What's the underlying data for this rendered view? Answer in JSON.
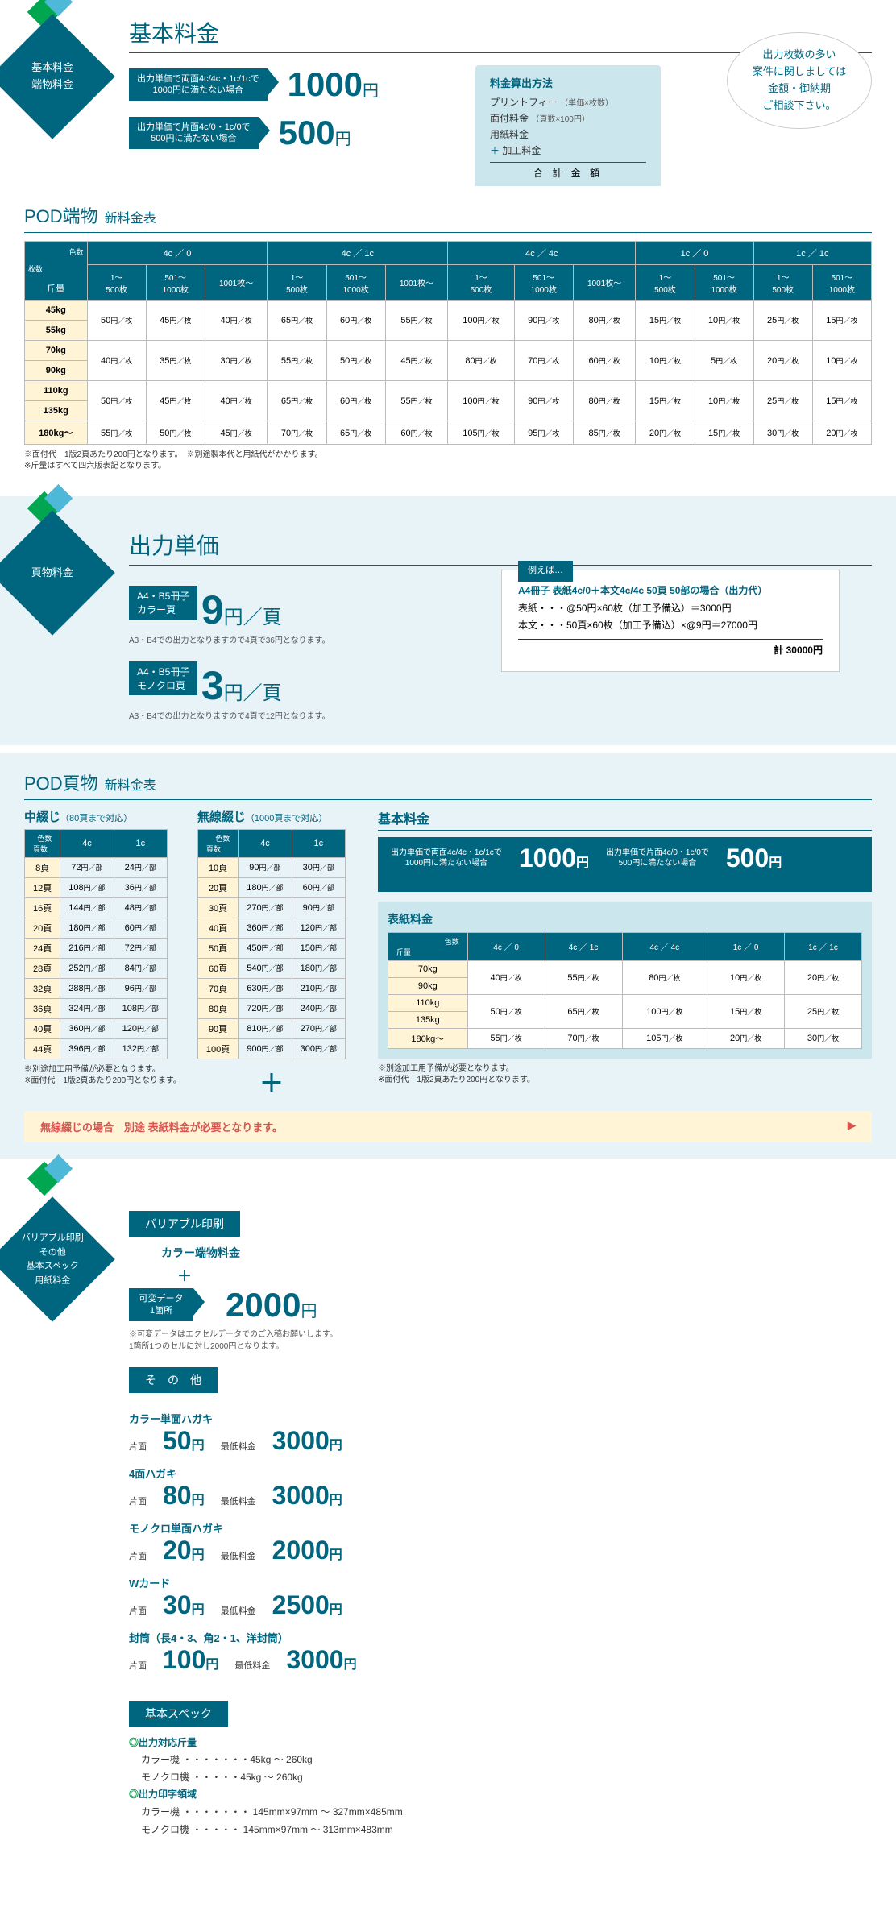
{
  "s1": {
    "badge": "基本料金\n端物料金",
    "title": "基本料金",
    "prices": [
      {
        "label": "出力単価で両面4c/4c・1c/1cで\n1000円に満たない場合",
        "value": "1000",
        "unit": "円"
      },
      {
        "label": "出力単価で片面4c/0・1c/0で\n500円に満たない場合",
        "value": "500",
        "unit": "円"
      }
    ],
    "calc": {
      "title": "料金算出方法",
      "lines": [
        "プリントフィー",
        "面付料金",
        "用紙料金",
        "加工料金"
      ],
      "line_notes": [
        "（単価×枚数）",
        "（頁数×100円）",
        "",
        ""
      ],
      "plus": "＋",
      "total": "合 計 金 額"
    },
    "speech": "出力枚数の多い\n案件に関しましては\n金額・御納期\nご相談下さい。"
  },
  "pod1": {
    "title": "POD端物",
    "title_sub": "新料金表",
    "corner1": "色数",
    "corner2": "枚数",
    "row_label": "斤量",
    "groups": [
      "4c ／ 0",
      "4c ／ 1c",
      "4c ／ 4c",
      "1c ／ 0",
      "1c ／ 1c"
    ],
    "sub3": [
      "1～\n500枚",
      "501～\n1000枚",
      "1001枚～"
    ],
    "sub2": [
      "1～\n500枚",
      "501～\n1000枚"
    ],
    "rows": [
      "45kg",
      "55kg",
      "70kg",
      "90kg",
      "110kg",
      "135kg",
      "180kg～"
    ],
    "suffix": "円／枚",
    "data": {
      "45kg": [
        "50",
        "45",
        "40",
        "65",
        "60",
        "55",
        "100",
        "90",
        "80",
        "15",
        "10",
        "25",
        "15"
      ],
      "55kg": [
        "",
        "",
        "",
        "",
        "",
        "",
        "",
        "",
        "",
        "",
        "",
        "",
        ""
      ],
      "70kg": [
        "40",
        "35",
        "30",
        "55",
        "50",
        "45",
        "80",
        "70",
        "60",
        "10",
        "5",
        "20",
        "10"
      ],
      "90kg": [
        "",
        "",
        "",
        "",
        "",
        "",
        "",
        "",
        "",
        "",
        "",
        "",
        ""
      ],
      "110kg": [
        "50",
        "45",
        "40",
        "65",
        "60",
        "55",
        "100",
        "90",
        "80",
        "15",
        "10",
        "25",
        "15"
      ],
      "135kg": [
        "",
        "",
        "",
        "",
        "",
        "",
        "",
        "",
        "",
        "",
        "",
        "",
        ""
      ],
      "180kg～": [
        "55",
        "50",
        "45",
        "70",
        "65",
        "60",
        "105",
        "95",
        "85",
        "20",
        "15",
        "30",
        "20"
      ]
    },
    "merge_rows": {
      "45kg": 2,
      "70kg": 2,
      "110kg": 2
    },
    "notes": "※面付代　1版2頁あたり200円となります。　※別途製本代と用紙代がかかります。\n※斤量はすべて四六版表記となります。"
  },
  "s2": {
    "badge": "頁物料金",
    "title": "出力単価",
    "units": [
      {
        "label": "A4・B5冊子\nカラー頁",
        "price": "9",
        "per": "円／頁",
        "note": "A3・B4での出力となりますので4頁で36円となります。"
      },
      {
        "label": "A4・B5冊子\nモノクロ頁",
        "price": "3",
        "per": "円／頁",
        "note": "A3・B4での出力となりますので4頁で12円となります。"
      }
    ],
    "example": {
      "tag": "例えば…",
      "title": "A4冊子 表紙4c/0＋本文4c/4c 50頁 50部の場合（出力代）",
      "lines": [
        "表紙・・・@50円×60枚（加工予備込）＝3000円",
        "本文・・・50頁×60枚（加工予備込）×@9円＝27000円"
      ],
      "total": "計 30000円"
    }
  },
  "pod2": {
    "title": "POD頁物",
    "title_sub": "新料金表",
    "naka": {
      "title": "中綴じ",
      "sub": "（80頁まで対応）",
      "head_corner": "色数",
      "head_row": "頁数",
      "cols": [
        "4c",
        "1c"
      ],
      "suffix": "円／部",
      "rows": [
        [
          "8頁",
          "72",
          "24"
        ],
        [
          "12頁",
          "108",
          "36"
        ],
        [
          "16頁",
          "144",
          "48"
        ],
        [
          "20頁",
          "180",
          "60"
        ],
        [
          "24頁",
          "216",
          "72"
        ],
        [
          "28頁",
          "252",
          "84"
        ],
        [
          "32頁",
          "288",
          "96"
        ],
        [
          "36頁",
          "324",
          "108"
        ],
        [
          "40頁",
          "360",
          "120"
        ],
        [
          "44頁",
          "396",
          "132"
        ]
      ],
      "notes": "※別途加工用予備が必要となります。\n※面付代　1版2頁あたり200円となります。"
    },
    "musen": {
      "title": "無線綴じ",
      "sub": "（1000頁まで対応）",
      "head_corner": "色数",
      "head_row": "頁数",
      "cols": [
        "4c",
        "1c"
      ],
      "suffix": "円／部",
      "rows": [
        [
          "10頁",
          "90",
          "30"
        ],
        [
          "20頁",
          "180",
          "60"
        ],
        [
          "30頁",
          "270",
          "90"
        ],
        [
          "40頁",
          "360",
          "120"
        ],
        [
          "50頁",
          "450",
          "150"
        ],
        [
          "60頁",
          "540",
          "180"
        ],
        [
          "70頁",
          "630",
          "210"
        ],
        [
          "80頁",
          "720",
          "240"
        ],
        [
          "90頁",
          "810",
          "270"
        ],
        [
          "100頁",
          "900",
          "300"
        ]
      ]
    },
    "basic": {
      "title": "基本料金",
      "p1_label": "出力単価で両面4c/4c・1c/1cで\n1000円に満たない場合",
      "p1": "1000",
      "p1u": "円",
      "p2_label": "出力単価で片面4c/0・1c/0で\n500円に満たない場合",
      "p2": "500",
      "p2u": "円"
    },
    "cover": {
      "title": "表紙料金",
      "row_label": "斤量",
      "col_label": "色数",
      "cols": [
        "4c ／ 0",
        "4c ／ 1c",
        "4c ／ 4c",
        "1c ／ 0",
        "1c ／ 1c"
      ],
      "rows": [
        "70kg",
        "90kg",
        "110kg",
        "135kg",
        "180kg～"
      ],
      "suffix": "円／枚",
      "data": {
        "70kg": [
          "40",
          "55",
          "80",
          "10",
          "20"
        ],
        "90kg": [
          "",
          "",
          "",
          "",
          ""
        ],
        "110kg": [
          "50",
          "65",
          "100",
          "15",
          "25"
        ],
        "135kg": [
          "",
          "",
          "",
          "",
          ""
        ],
        "180kg～": [
          "55",
          "70",
          "105",
          "20",
          "30"
        ]
      },
      "merge_rows": {
        "70kg": 2,
        "110kg": 2
      },
      "notes": "※別途加工用予備が必要となります。\n※面付代　1版2頁あたり200円となります。"
    },
    "warning": "無線綴じの場合　別途 表紙料金が必要となります。"
  },
  "s3": {
    "badge": "バリアブル印刷\nその他\n基本スペック\n用紙料金",
    "var": {
      "band": "バリアブル印刷",
      "sub": "カラー端物料金",
      "plus": "＋",
      "data_label": "可変データ\n1箇所",
      "price": "2000",
      "unit": "円",
      "note": "※可変データはエクセルデータでのご入稿お願いします。\n1箇所1つのセルに対し2000円となります。"
    },
    "other": {
      "band": "そ　の　他",
      "items": [
        {
          "name": "カラー単面ハガキ",
          "l1": "片面",
          "v1": "50",
          "u1": "円",
          "l2": "最低料金",
          "v2": "3000",
          "u2": "円"
        },
        {
          "name": "4面ハガキ",
          "l1": "片面",
          "v1": "80",
          "u1": "円",
          "l2": "最低料金",
          "v2": "3000",
          "u2": "円"
        },
        {
          "name": "モノクロ単面ハガキ",
          "l1": "片面",
          "v1": "20",
          "u1": "円",
          "l2": "最低料金",
          "v2": "2000",
          "u2": "円"
        },
        {
          "name": "Wカード",
          "l1": "片面",
          "v1": "30",
          "u1": "円",
          "l2": "最低料金",
          "v2": "2500",
          "u2": "円"
        },
        {
          "name": "封筒（長4・3、角2・1、洋封筒）",
          "l1": "片面",
          "v1": "100",
          "u1": "円",
          "l2": "最低料金",
          "v2": "3000",
          "u2": "円"
        }
      ]
    },
    "spec": {
      "band": "基本スペック",
      "h1": "◎出力対応斤量",
      "l1": "カラー機 ・・・・・・・45kg ～ 260kg",
      "l2": "モノクロ機 ・・・・・45kg ～ 260kg",
      "h2": "◎出力印字領域",
      "l3": "カラー機 ・・・・・・・ 145mm×97mm ～ 327mm×485mm",
      "l4": "モノクロ機 ・・・・・ 145mm×97mm ～ 313mm×483mm"
    }
  }
}
